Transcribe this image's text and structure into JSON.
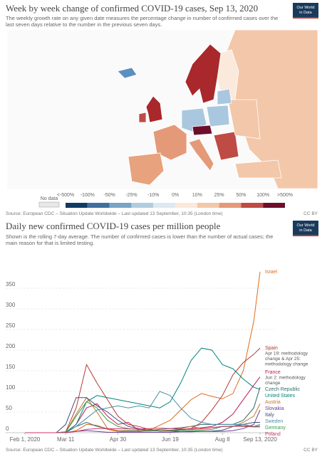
{
  "map": {
    "title": "Week by week change of confirmed COVID-19 cases, Sep 13, 2020",
    "subtitle": [
      "The weekly growth rate on any given date measures the percentage change in number of confirmed cases over the",
      "last seven days relative to the number in the previous seven days."
    ],
    "no_data": {
      "label": "No data",
      "color": "#e8e8e8"
    },
    "legend_labels": [
      "<-500%",
      "-100%",
      "-50%",
      "-25%",
      "-10%",
      "0%",
      "10%",
      "25%",
      "50%",
      "100%",
      ">500%"
    ],
    "legend_colors": [
      "#0f3a63",
      "#3e6f9f",
      "#78a4c8",
      "#b1cde0",
      "#dce9f1",
      "#fbe9dc",
      "#f3c7a9",
      "#e49a79",
      "#bf4b45",
      "#6d0f2b"
    ],
    "source": "Source: European CDC – Situation Update Worldwide – Last updated 13 September, 10:35 (London time)",
    "license": "CC BY",
    "logo": [
      "Our World",
      "in Data"
    ]
  },
  "chart_data": {
    "type": "line",
    "title": "Daily new confirmed COVID-19 cases per million people",
    "subtitle": [
      "Shown is the rolling 7-day average. The number of confirmed cases is lower than the number of actual cases; the",
      "main reason for that is limited testing."
    ],
    "x": [
      "2020-02-01",
      "2020-02-21",
      "2020-03-02",
      "2020-03-11",
      "2020-03-21",
      "2020-03-31",
      "2020-04-10",
      "2020-04-20",
      "2020-04-30",
      "2020-05-10",
      "2020-05-20",
      "2020-05-30",
      "2020-06-09",
      "2020-06-19",
      "2020-06-29",
      "2020-07-09",
      "2020-07-19",
      "2020-07-29",
      "2020-08-08",
      "2020-08-18",
      "2020-08-28",
      "2020-09-07",
      "2020-09-13"
    ],
    "xticks": [
      {
        "value": "2020-02-01",
        "label": "Feb 1, 2020"
      },
      {
        "value": "2020-03-11",
        "label": "Mar 11"
      },
      {
        "value": "2020-04-30",
        "label": "Apr 30"
      },
      {
        "value": "2020-06-19",
        "label": "Jun 19"
      },
      {
        "value": "2020-08-08",
        "label": "Aug 8"
      },
      {
        "value": "2020-09-13",
        "label": "Sep 13, 2020"
      }
    ],
    "ylim": [
      0,
      400
    ],
    "yticks": [
      0,
      50,
      100,
      150,
      200,
      250,
      300,
      350
    ],
    "grid": true,
    "series": [
      {
        "name": "Israel",
        "color": "#e06a1b",
        "values": [
          0,
          0,
          0,
          0,
          5,
          20,
          18,
          8,
          3,
          2,
          2,
          6,
          18,
          30,
          55,
          80,
          95,
          88,
          82,
          95,
          150,
          270,
          390
        ]
      },
      {
        "name": "Spain",
        "color": "#b03a2e",
        "annotation": [
          "Apr 19: methodology",
          "change & Apr 25:",
          "methodology change"
        ],
        "values": [
          0,
          0,
          0,
          2,
          60,
          165,
          120,
          80,
          40,
          20,
          15,
          8,
          5,
          5,
          6,
          10,
          25,
          55,
          90,
          140,
          170,
          190,
          205
        ]
      },
      {
        "name": "France",
        "color": "#c2185b",
        "annotation": [
          "Jun 2: methodology",
          "change"
        ],
        "values": [
          0,
          0,
          0,
          1,
          20,
          60,
          70,
          40,
          20,
          25,
          5,
          5,
          5,
          6,
          8,
          10,
          12,
          15,
          25,
          45,
          80,
          115,
          135
        ]
      },
      {
        "name": "United States",
        "color": "#00847e",
        "values": [
          0,
          0,
          0,
          0,
          20,
          75,
          90,
          85,
          80,
          75,
          70,
          65,
          60,
          75,
          120,
          175,
          205,
          200,
          165,
          155,
          130,
          110,
          105
        ]
      },
      {
        "name": "Czech Republic",
        "color": "#2f6b6b",
        "values": [
          0,
          0,
          0,
          0,
          15,
          25,
          15,
          10,
          5,
          5,
          5,
          5,
          8,
          10,
          12,
          15,
          20,
          20,
          20,
          20,
          30,
          60,
          110
        ]
      },
      {
        "name": "Austria",
        "color": "#c1762b",
        "values": [
          0,
          0,
          0,
          1,
          45,
          85,
          50,
          10,
          5,
          4,
          4,
          4,
          5,
          5,
          10,
          15,
          10,
          12,
          15,
          15,
          25,
          40,
          70
        ]
      },
      {
        "name": "Slovakia",
        "color": "#6a3d9a",
        "values": [
          0,
          0,
          0,
          0,
          3,
          5,
          3,
          1,
          1,
          1,
          1,
          1,
          1,
          1,
          2,
          2,
          3,
          3,
          3,
          5,
          10,
          20,
          55
        ]
      },
      {
        "name": "Italy",
        "color": "#3c4e7f",
        "values": [
          0,
          0,
          0,
          20,
          85,
          85,
          65,
          50,
          30,
          15,
          10,
          6,
          4,
          4,
          3,
          3,
          3,
          4,
          6,
          15,
          20,
          25,
          25
        ]
      },
      {
        "name": "Sweden",
        "color": "#4a8fa8",
        "values": [
          0,
          0,
          0,
          2,
          15,
          35,
          55,
          60,
          65,
          60,
          65,
          60,
          100,
          90,
          60,
          35,
          25,
          20,
          20,
          20,
          20,
          15,
          20
        ]
      },
      {
        "name": "Germany",
        "color": "#3a9a48",
        "values": [
          0,
          0,
          0,
          1,
          40,
          75,
          60,
          30,
          15,
          10,
          8,
          6,
          4,
          5,
          6,
          5,
          6,
          8,
          15,
          15,
          17,
          15,
          16
        ]
      },
      {
        "name": "Poland",
        "color": "#d6336c",
        "values": [
          0,
          0,
          0,
          0,
          3,
          8,
          10,
          10,
          10,
          9,
          9,
          10,
          11,
          10,
          9,
          8,
          9,
          12,
          15,
          16,
          15,
          14,
          14
        ]
      }
    ],
    "source": "Source: European CDC – Situation Update Worldwide – Last updated 13 September, 10:35 (London time)",
    "license": "CC BY",
    "logo": [
      "Our World",
      "in Data"
    ]
  }
}
